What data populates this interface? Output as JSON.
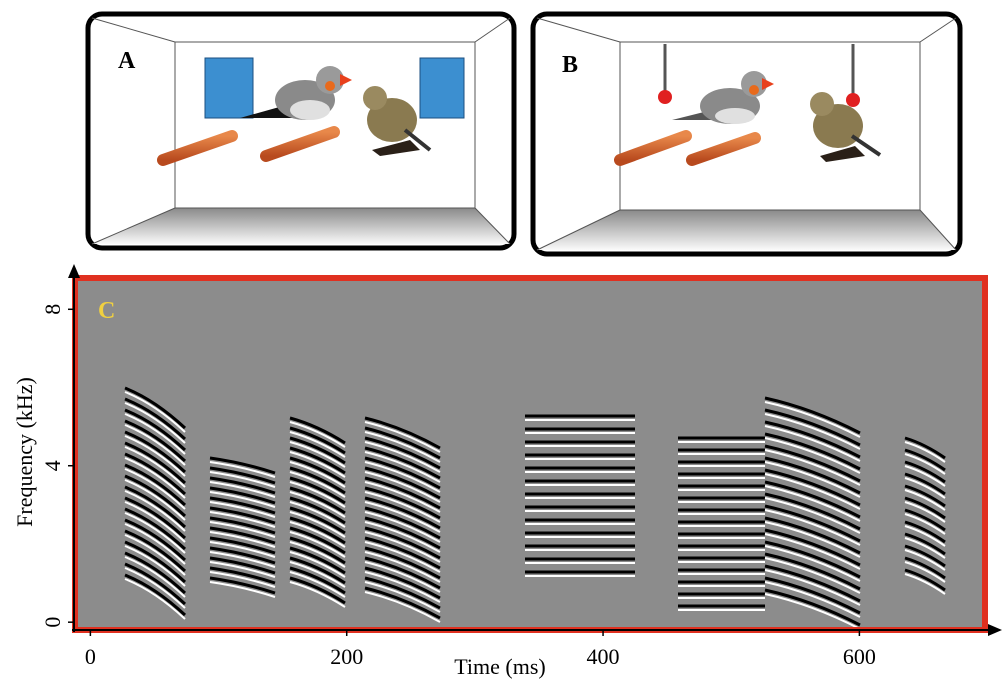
{
  "panels": [
    {
      "label": "A"
    },
    {
      "label": "B"
    }
  ],
  "spectrogram": {
    "label": "C",
    "x_label": "Time (ms)",
    "y_label": "Frequency (kHz)",
    "xlim": [
      -12,
      698
    ],
    "ylim": [
      -0.2,
      8.8
    ],
    "xticks": [
      0,
      200,
      400,
      600
    ],
    "yticks": [
      0,
      4,
      8
    ]
  }
}
